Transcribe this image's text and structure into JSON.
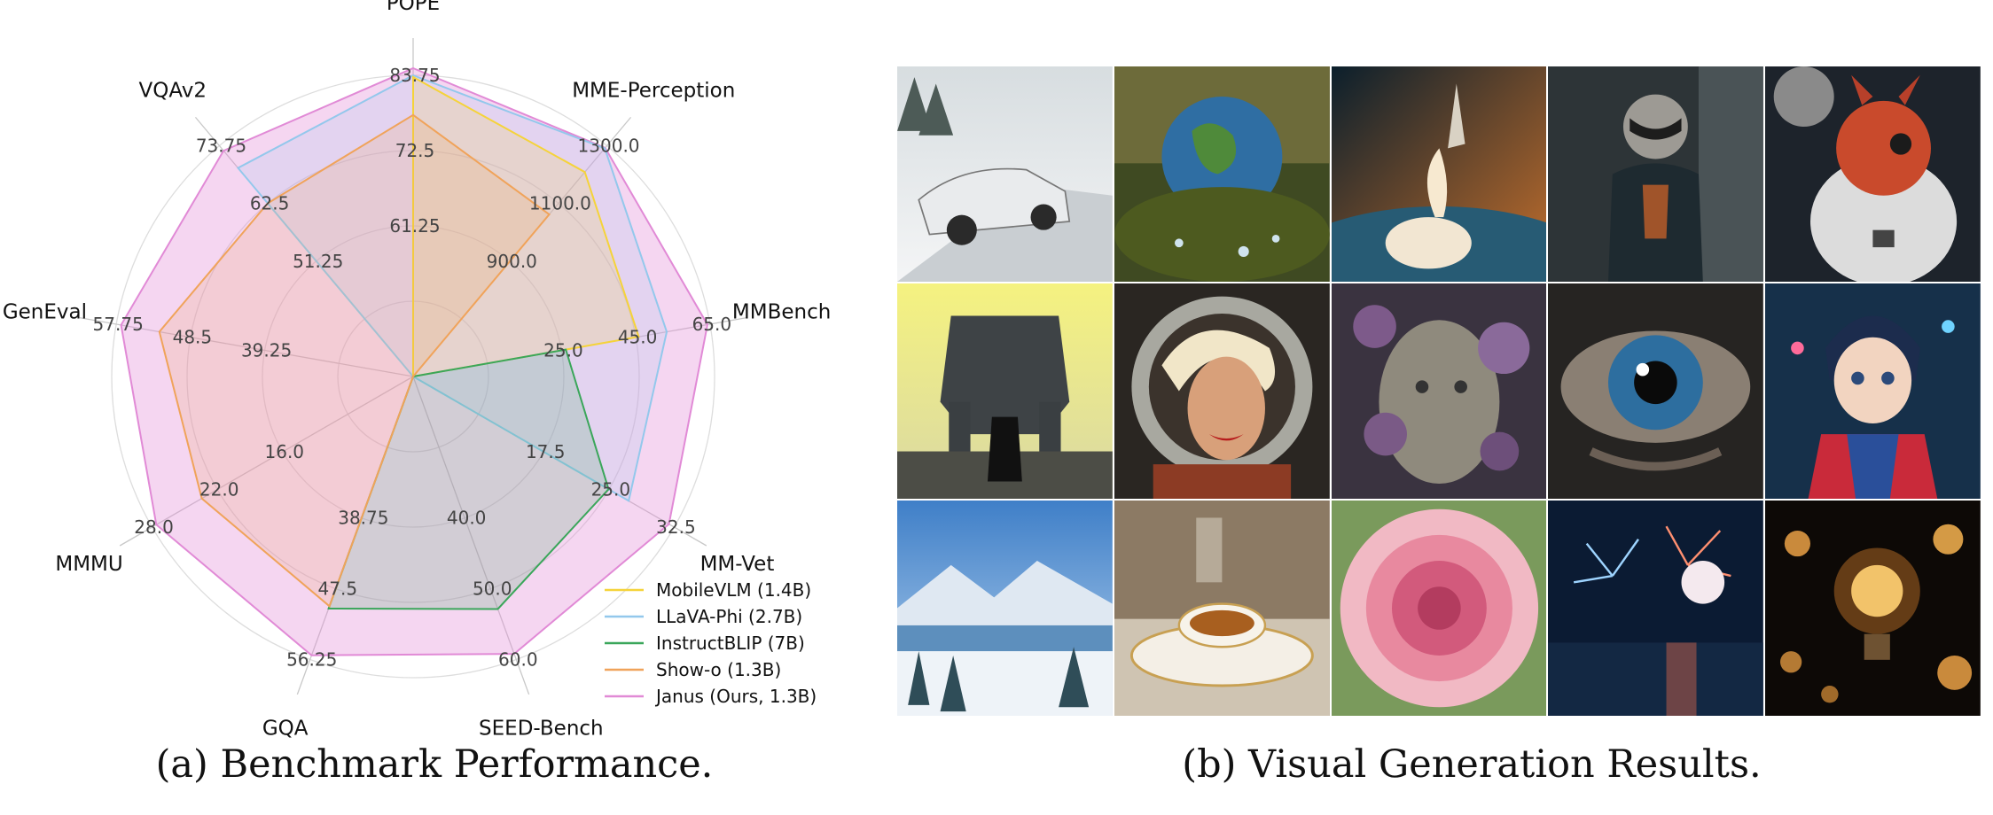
{
  "chart_data": {
    "type": "radar",
    "title": "",
    "axes": [
      {
        "name": "POPE",
        "ticks": [
          "61.25",
          "72.5",
          "83.75"
        ],
        "max": 85
      },
      {
        "name": "MME-Perception",
        "ticks": [
          "900.0",
          "1100.0",
          "1300.0"
        ],
        "max": 1350
      },
      {
        "name": "MMBench",
        "ticks": [
          "25.0",
          "45.0",
          "65.0"
        ],
        "max": 70
      },
      {
        "name": "MM-Vet",
        "ticks": [
          "17.5",
          "25.0",
          "32.5"
        ],
        "max": 35
      },
      {
        "name": "SEED-Bench",
        "ticks": [
          "40.0",
          "50.0",
          "60.0"
        ],
        "max": 65
      },
      {
        "name": "GQA",
        "ticks": [
          "38.75",
          "47.5",
          "56.25"
        ],
        "max": 60
      },
      {
        "name": "MMMU",
        "ticks": [
          "16.0",
          "22.0",
          "28.0"
        ],
        "max": 31
      },
      {
        "name": "GenEval",
        "ticks": [
          "39.25",
          "48.5",
          "57.75"
        ],
        "max": 62
      },
      {
        "name": "VQAv2",
        "ticks": [
          "51.25",
          "62.5",
          "73.75"
        ],
        "max": 79
      }
    ],
    "series": [
      {
        "name": "MobileVLM (1.4B)",
        "color": "#f5d33a",
        "values": [
          84.5,
          1196.2,
          53.2,
          null,
          null,
          null,
          null,
          null,
          null
        ]
      },
      {
        "name": "LLaVA-Phi (2.7B)",
        "color": "#93c8ec",
        "values": [
          85.0,
          1335.1,
          59.8,
          28.9,
          null,
          null,
          null,
          null,
          71.4
        ]
      },
      {
        "name": "InstructBLIP (7B)",
        "color": "#3aa65a",
        "values": [
          null,
          null,
          36.0,
          26.2,
          53.4,
          49.2,
          null,
          null,
          null
        ]
      },
      {
        "name": "Show-o (1.3B)",
        "color": "#f0a35a",
        "values": [
          73.8,
          948.4,
          null,
          null,
          null,
          48.7,
          25.1,
          53.0,
          59.3
        ]
      },
      {
        "name": "Janus (Ours, 1.3B)",
        "color": "#e18ad6",
        "values": [
          87.0,
          1338.0,
          69.4,
          34.3,
          63.7,
          59.1,
          30.5,
          61.0,
          77.3
        ]
      }
    ],
    "legend_position": "bottom-right",
    "grid": true
  },
  "captions": {
    "a": "(a) Benchmark Performance.",
    "b": "(b) Visual Generation Results."
  },
  "tiles": [
    {
      "name": "tile-white-sports-car"
    },
    {
      "name": "tile-earth-on-moss"
    },
    {
      "name": "tile-rocket-launch"
    },
    {
      "name": "tile-raccoon-in-coat"
    },
    {
      "name": "tile-dragon-astronaut"
    },
    {
      "name": "tile-giant-robot"
    },
    {
      "name": "tile-woman-astronaut-helmet"
    },
    {
      "name": "tile-floral-face"
    },
    {
      "name": "tile-close-up-eye"
    },
    {
      "name": "tile-anime-boy"
    },
    {
      "name": "tile-snowy-mountains"
    },
    {
      "name": "tile-cup-of-tea"
    },
    {
      "name": "tile-pink-flower"
    },
    {
      "name": "tile-fireworks"
    },
    {
      "name": "tile-light-bulb-bokeh"
    }
  ]
}
